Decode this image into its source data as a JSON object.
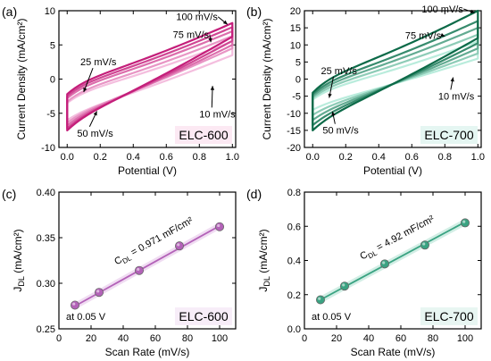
{
  "chart_data": [
    {
      "panel": "(a)",
      "type": "line",
      "title": "",
      "xlabel": "Potential (V)",
      "ylabel": "Current Density (mA/cm²)",
      "xlim": [
        -0.05,
        1.02
      ],
      "ylim": [
        -10,
        10
      ],
      "xticks": [
        "0.0",
        "0.2",
        "0.4",
        "0.6",
        "0.8",
        "1.0"
      ],
      "yticks": [
        "-10",
        "-5",
        "0",
        "5",
        "10"
      ],
      "grid": false,
      "box_label": "ELC-600",
      "box_color": "#e4479a",
      "color_range": [
        "#f4bede",
        "#c41e7a"
      ],
      "cv_curves": [
        {
          "name": "10 mV/s",
          "upper_start": -3.5,
          "upper_end": 5.5,
          "lower_start": -6.0,
          "lower_end": 3.5
        },
        {
          "name": "25 mV/s",
          "upper_start": -3.3,
          "upper_end": 6.3,
          "lower_start": -6.4,
          "lower_end": 4.5
        },
        {
          "name": "50 mV/s",
          "upper_start": -2.8,
          "upper_end": 7.0,
          "lower_start": -6.8,
          "lower_end": 5.0
        },
        {
          "name": "75 mV/s",
          "upper_start": -2.5,
          "upper_end": 7.6,
          "lower_start": -7.2,
          "lower_end": 5.6
        },
        {
          "name": "100 mV/s",
          "upper_start": -2.2,
          "upper_end": 8.2,
          "lower_start": -7.5,
          "lower_end": 6.2
        }
      ],
      "annotations": [
        {
          "text": "100 mV/s",
          "x": 0.66,
          "y": 8.6,
          "arrow_to": [
            0.97,
            8.0
          ]
        },
        {
          "text": "75 mV/s",
          "x": 0.64,
          "y": 6.0,
          "arrow_to": [
            0.87,
            5.4
          ]
        },
        {
          "text": "25 mV/s",
          "x": 0.08,
          "y": 2.0,
          "arrow_to": [
            0.1,
            -1.9
          ]
        },
        {
          "text": "10 mV/s",
          "x": 0.8,
          "y": -5.6,
          "arrow_to": [
            0.88,
            -1.0
          ]
        },
        {
          "text": "50 mV/s",
          "x": 0.06,
          "y": -8.4,
          "arrow_to": [
            0.18,
            -4.7
          ]
        }
      ]
    },
    {
      "panel": "(b)",
      "type": "line",
      "title": "",
      "xlabel": "Potential (V)",
      "ylabel": "Current Density (mA/cm²)",
      "xlim": [
        -0.05,
        1.02
      ],
      "ylim": [
        -20,
        20
      ],
      "xticks": [
        "0.0",
        "0.2",
        "0.4",
        "0.6",
        "0.8",
        "1.0"
      ],
      "yticks": [
        "-20",
        "-15",
        "-10",
        "-5",
        "0",
        "5",
        "10",
        "15",
        "20"
      ],
      "grid": false,
      "box_label": "ELC-700",
      "box_color": "#28b892",
      "color_range": [
        "#b9ecdc",
        "#0c6a48"
      ],
      "cv_curves": [
        {
          "name": "10 mV/s",
          "upper_start": -6.0,
          "upper_end": 11.0,
          "lower_start": -9.0,
          "lower_end": 6.0
        },
        {
          "name": "25 mV/s",
          "upper_start": -5.5,
          "upper_end": 13.0,
          "lower_start": -10.5,
          "lower_end": 7.5
        },
        {
          "name": "50 mV/s",
          "upper_start": -5.0,
          "upper_end": 15.0,
          "lower_start": -12.0,
          "lower_end": 9.0
        },
        {
          "name": "75 mV/s",
          "upper_start": -4.5,
          "upper_end": 17.0,
          "lower_start": -13.5,
          "lower_end": 10.5
        },
        {
          "name": "100 mV/s",
          "upper_start": -4.0,
          "upper_end": 20.0,
          "lower_start": -15.0,
          "lower_end": 12.0
        }
      ],
      "annotations": [
        {
          "text": "100 mV/s",
          "x": 0.66,
          "y": 19.5,
          "arrow_to": [
            0.98,
            19.4
          ]
        },
        {
          "text": "75 mV/s",
          "x": 0.56,
          "y": 11.8,
          "arrow_to": [
            0.8,
            12.5
          ]
        },
        {
          "text": "25 mV/s",
          "x": 0.05,
          "y": 1.5,
          "arrow_to": [
            0.1,
            -5.5
          ]
        },
        {
          "text": "10 mV/s",
          "x": 0.76,
          "y": -6.0,
          "arrow_to": [
            0.85,
            0.5
          ]
        },
        {
          "text": "50 mV/s",
          "x": 0.06,
          "y": -16.0,
          "arrow_to": [
            0.12,
            -9.5
          ]
        }
      ]
    },
    {
      "panel": "(c)",
      "type": "scatter",
      "title": "",
      "xlabel": "Scan Rate (mV/s)",
      "ylabel_main": "J",
      "ylabel_sub": "DL",
      "ylabel_unit": " (mA/cm²)",
      "xlim": [
        0,
        110
      ],
      "ylim": [
        0.25,
        0.4
      ],
      "xticks": [
        "0",
        "20",
        "40",
        "60",
        "80",
        "100"
      ],
      "yticks": [
        "0.25",
        "0.30",
        "0.35",
        "0.40"
      ],
      "grid": false,
      "x": [
        10,
        25,
        50,
        75,
        100
      ],
      "y": [
        0.276,
        0.29,
        0.314,
        0.341,
        0.362
      ],
      "fit_line": [
        [
          10,
          0.275
        ],
        [
          100,
          0.363
        ]
      ],
      "fit_label_pre": "C",
      "fit_label_sub": "DL",
      "fit_label_post": " = 0.971 mF/cm²",
      "condition": "at 0.05 V",
      "box_label": "ELC-600",
      "line_color": "#b362b8",
      "box_color": "#d59ad9"
    },
    {
      "panel": "(d)",
      "type": "scatter",
      "title": "",
      "xlabel": "Scan Rate (mV/s)",
      "ylabel_main": "J",
      "ylabel_sub": "DL",
      "ylabel_unit": " (mA/cm²)",
      "xlim": [
        0,
        110
      ],
      "ylim": [
        0.0,
        0.8
      ],
      "xticks": [
        "0",
        "20",
        "40",
        "60",
        "80",
        "100"
      ],
      "yticks": [
        "0.0",
        "0.2",
        "0.4",
        "0.6",
        "0.8"
      ],
      "grid": false,
      "x": [
        10,
        25,
        50,
        75,
        100
      ],
      "y": [
        0.17,
        0.25,
        0.38,
        0.49,
        0.62
      ],
      "fit_line": [
        [
          10,
          0.17
        ],
        [
          100,
          0.625
        ]
      ],
      "fit_label_pre": "C",
      "fit_label_sub": "DL",
      "fit_label_post": " = 4.92 mF/cm²",
      "condition": "at 0.05 V",
      "box_label": "ELC-700",
      "line_color": "#3aa382",
      "box_color": "#7fcfb5"
    }
  ]
}
